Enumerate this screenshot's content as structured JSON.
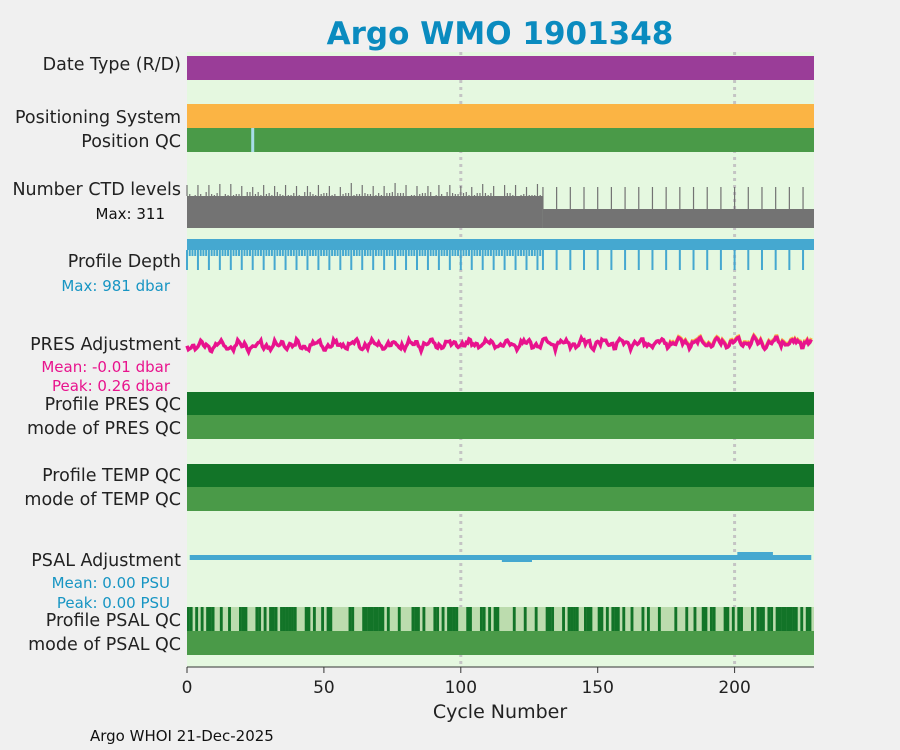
{
  "chart_data": {
    "type": "timeline",
    "title": "Argo WMO 1901348",
    "xlabel": "Cycle Number",
    "xlim": [
      0,
      229
    ],
    "xticks": [
      0,
      50,
      100,
      150,
      200
    ],
    "footer": "Argo WHOI 21-Dec-2025",
    "rows": {
      "date_type": {
        "label": "Date Type (R/D)"
      },
      "positioning_system": {
        "label": "Positioning System"
      },
      "position_qc": {
        "label": "Position QC",
        "anomaly_cycles": [
          24
        ]
      },
      "ctd_levels": {
        "label": "Number CTD levels",
        "stat": "Max: 311",
        "max": 311,
        "level_change_cycle": 130
      },
      "profile_depth": {
        "label": "Profile Depth",
        "stat": "Max:  981 dbar",
        "max_dbar": 981
      },
      "pres_adjustment": {
        "label": "PRES Adjustment",
        "mean": "Mean: -0.01 dbar",
        "peak": "Peak: 0.26 dbar"
      },
      "profile_pres_qc": {
        "label": "Profile PRES QC"
      },
      "mode_pres_qc": {
        "label": "mode of PRES QC"
      },
      "profile_temp_qc": {
        "label": "Profile TEMP QC"
      },
      "mode_temp_qc": {
        "label": "mode of TEMP QC"
      },
      "psal_adjustment": {
        "label": "PSAL Adjustment",
        "mean": "Mean: 0.00 PSU",
        "peak": "Peak: 0.00 PSU"
      },
      "profile_psal_qc": {
        "label": "Profile PSAL QC"
      },
      "mode_psal_qc": {
        "label": "mode of PSAL QC"
      }
    },
    "colors": {
      "title": "#0a8bbf",
      "background": "#e5f8e0",
      "date_type": "#9a3d98",
      "positioning": "#fbb444",
      "qc_good": "#4a9a48",
      "qc_dark": "#127428",
      "qc_light": "#bcdcae",
      "ctd": "#737373",
      "depth": "#45a8d0",
      "pres_line": "#e8138d",
      "pres_peak": "#fbb444",
      "psal": "#45a8d0",
      "grid": "#c4c4c4"
    }
  }
}
